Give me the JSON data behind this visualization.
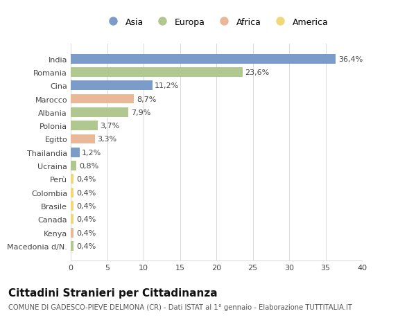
{
  "categories": [
    "India",
    "Romania",
    "Cina",
    "Marocco",
    "Albania",
    "Polonia",
    "Egitto",
    "Thailandia",
    "Ucraina",
    "Perù",
    "Colombia",
    "Brasile",
    "Canada",
    "Kenya",
    "Macedonia d/N."
  ],
  "values": [
    36.4,
    23.6,
    11.2,
    8.7,
    7.9,
    3.7,
    3.3,
    1.2,
    0.8,
    0.4,
    0.4,
    0.4,
    0.4,
    0.4,
    0.4
  ],
  "labels": [
    "36,4%",
    "23,6%",
    "11,2%",
    "8,7%",
    "7,9%",
    "3,7%",
    "3,3%",
    "1,2%",
    "0,8%",
    "0,4%",
    "0,4%",
    "0,4%",
    "0,4%",
    "0,4%",
    "0,4%"
  ],
  "continents": [
    "Asia",
    "Europa",
    "Asia",
    "Africa",
    "Europa",
    "Europa",
    "Africa",
    "Asia",
    "Europa",
    "America",
    "America",
    "America",
    "America",
    "Africa",
    "Europa"
  ],
  "continent_colors": {
    "Asia": "#7b9cc8",
    "Europa": "#b0c890",
    "Africa": "#e8b898",
    "America": "#f0d878"
  },
  "legend_order": [
    "Asia",
    "Europa",
    "Africa",
    "America"
  ],
  "title": "Cittadini Stranieri per Cittadinanza",
  "subtitle": "COMUNE DI GADESCO-PIEVE DELMONA (CR) - Dati ISTAT al 1° gennaio - Elaborazione TUTTITALIA.IT",
  "xlim": [
    0,
    40
  ],
  "xticks": [
    0,
    5,
    10,
    15,
    20,
    25,
    30,
    35,
    40
  ],
  "bg_color": "#ffffff",
  "grid_color": "#d8d8d8",
  "bar_height": 0.72,
  "label_fontsize": 8.0,
  "tick_fontsize": 8.0,
  "title_fontsize": 11,
  "subtitle_fontsize": 7.2,
  "legend_fontsize": 9.0
}
